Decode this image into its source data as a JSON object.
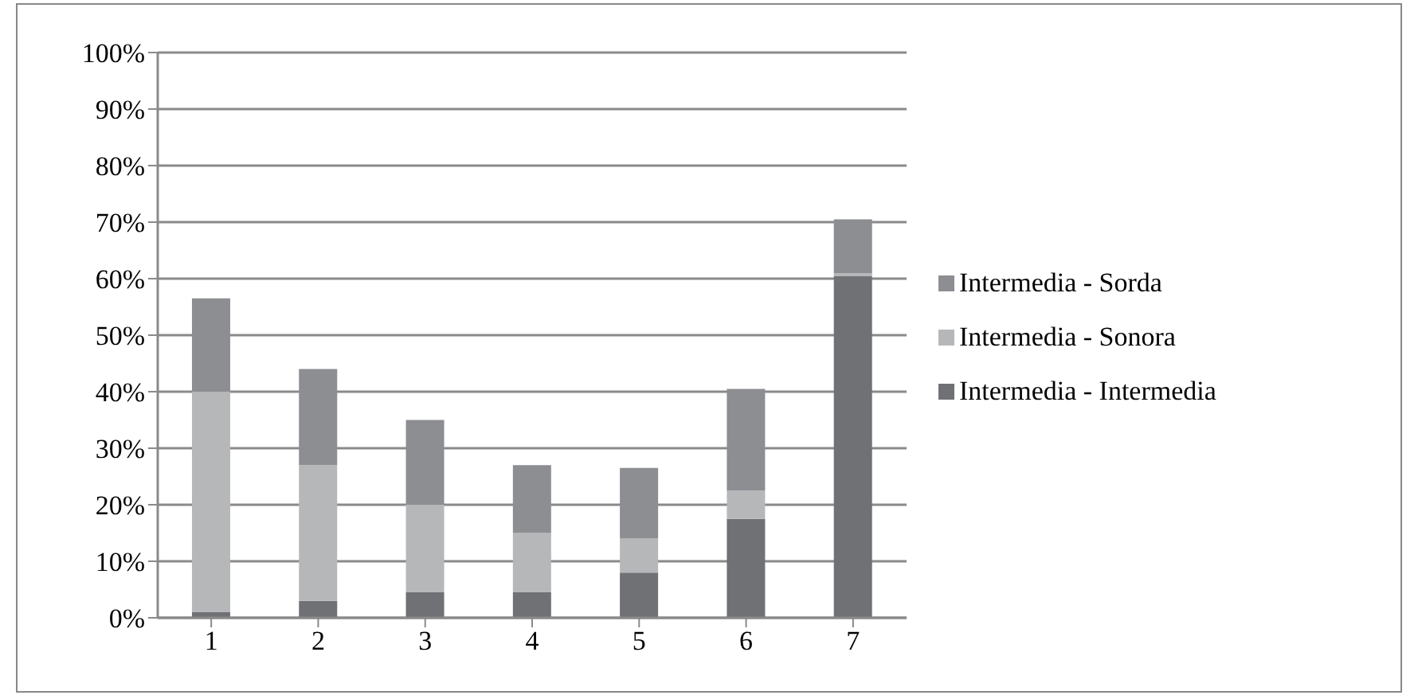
{
  "chart_data": {
    "type": "bar",
    "stacked": true,
    "categories": [
      "1",
      "2",
      "3",
      "4",
      "5",
      "6",
      "7"
    ],
    "series": [
      {
        "name": "Intermedia - Intermedia",
        "color": "#707174",
        "values": [
          1,
          3,
          4.5,
          4.5,
          8,
          17.5,
          60.5
        ]
      },
      {
        "name": "Intermedia - Sonora",
        "color": "#b5b7b9",
        "values": [
          39,
          24,
          15.5,
          10.5,
          6,
          5,
          0.5
        ]
      },
      {
        "name": "Intermedia - Sorda",
        "color": "#8c8e92",
        "values": [
          16.5,
          17,
          15,
          12,
          12.5,
          18,
          9.5
        ]
      }
    ],
    "ylim": [
      0,
      100
    ],
    "yticks": [
      {
        "value": 0,
        "label": "0%"
      },
      {
        "value": 10,
        "label": "10%"
      },
      {
        "value": 20,
        "label": "20%"
      },
      {
        "value": 30,
        "label": "30%"
      },
      {
        "value": 40,
        "label": "40%"
      },
      {
        "value": 50,
        "label": "50%"
      },
      {
        "value": 60,
        "label": "60%"
      },
      {
        "value": 70,
        "label": "70%"
      },
      {
        "value": 80,
        "label": "80%"
      },
      {
        "value": 90,
        "label": "90%"
      },
      {
        "value": 100,
        "label": "100%"
      }
    ],
    "grid": "y",
    "legend": "right"
  }
}
